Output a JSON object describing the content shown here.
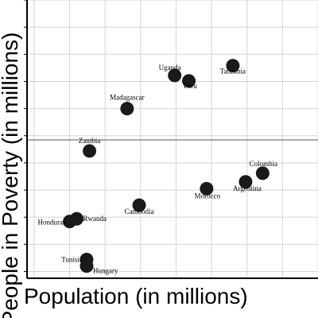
{
  "chart_data": {
    "type": "scatter",
    "xlabel": "Population (in millions)",
    "ylabel": "People in Poverty (in millions)",
    "xlim": [
      -10,
      400
    ],
    "ylim": [
      -25,
      1000
    ],
    "grid": true,
    "point_color": "#1a1a1a",
    "points": [
      {
        "label": "Uganda",
        "x": 198,
        "y": 722
      },
      {
        "label": "Peru",
        "x": 218,
        "y": 702
      },
      {
        "label": "Tanzania",
        "x": 280,
        "y": 758
      },
      {
        "label": "Madagascar",
        "x": 131,
        "y": 600
      },
      {
        "label": "Zambia",
        "x": 78,
        "y": 444
      },
      {
        "label": "Colombia",
        "x": 322,
        "y": 362
      },
      {
        "label": "Argentina",
        "x": 298,
        "y": 330
      },
      {
        "label": "Morocco",
        "x": 243,
        "y": 305
      },
      {
        "label": "Cambodia",
        "x": 148,
        "y": 244
      },
      {
        "label": "Honduras",
        "x": 50,
        "y": 184
      },
      {
        "label": "Rwanda",
        "x": 60,
        "y": 194
      },
      {
        "label": "Tunisia",
        "x": 74,
        "y": 44
      },
      {
        "label": "Hungary",
        "x": 74,
        "y": 20
      }
    ]
  }
}
